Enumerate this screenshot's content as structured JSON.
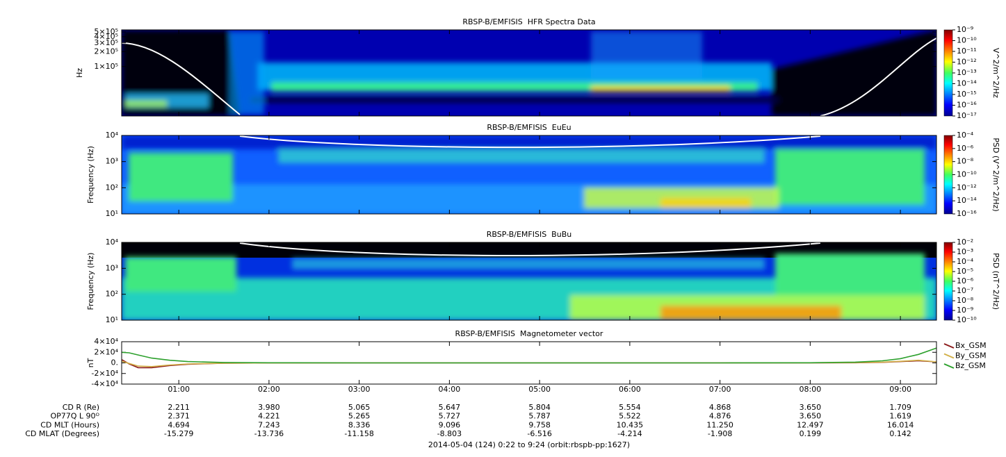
{
  "chart_data": [
    {
      "type": "spectrogram",
      "title": "RBSP-B/EMFISIS  HFR Spectra Data",
      "ylabel": "Hz",
      "ylog": true,
      "ylim": [
        10000,
        550000
      ],
      "yticks": [
        {
          "value": 100000,
          "label": "1×10⁵"
        },
        {
          "value": 200000,
          "label": "2×10⁵"
        },
        {
          "value": 300000,
          "label": "3×10⁵"
        },
        {
          "value": 400000,
          "label": "4×10⁵"
        },
        {
          "value": 500000,
          "label": "5×10⁵"
        }
      ],
      "zlabel": "V^2/m^2/Hz",
      "zlim": [
        1e-17,
        1e-09
      ],
      "zticks": [
        {
          "value": 1e-09,
          "label": "10⁻⁹"
        },
        {
          "value": 1e-10,
          "label": "10⁻¹⁰"
        },
        {
          "value": 1e-11,
          "label": "10⁻¹¹"
        },
        {
          "value": 1e-12,
          "label": "10⁻¹²"
        },
        {
          "value": 1e-13,
          "label": "10⁻¹³"
        },
        {
          "value": 1e-14,
          "label": "10⁻¹⁴"
        },
        {
          "value": 1e-15,
          "label": "10⁻¹⁵"
        },
        {
          "value": 1e-16,
          "label": "10⁻¹⁶"
        },
        {
          "value": 1e-17,
          "label": "10⁻¹⁷"
        }
      ]
    },
    {
      "type": "spectrogram",
      "title": "RBSP-B/EMFISIS  EuEu",
      "ylabel": "Frequency (Hz)",
      "ylog": true,
      "ylim": [
        10,
        10000
      ],
      "yticks": [
        {
          "value": 10,
          "label": "10¹"
        },
        {
          "value": 100,
          "label": "10²"
        },
        {
          "value": 1000,
          "label": "10³"
        },
        {
          "value": 10000,
          "label": "10⁴"
        }
      ],
      "zlabel": "PSD (V^2/m^2/Hz)",
      "zlim": [
        1e-16,
        0.0001
      ],
      "zticks": [
        {
          "value": 0.0001,
          "label": "10⁻⁴"
        },
        {
          "value": 1e-06,
          "label": "10⁻⁶"
        },
        {
          "value": 1e-08,
          "label": "10⁻⁸"
        },
        {
          "value": 1e-10,
          "label": "10⁻¹⁰"
        },
        {
          "value": 1e-12,
          "label": "10⁻¹²"
        },
        {
          "value": 1e-14,
          "label": "10⁻¹⁴"
        },
        {
          "value": 1e-16,
          "label": "10⁻¹⁶"
        }
      ]
    },
    {
      "type": "spectrogram",
      "title": "RBSP-B/EMFISIS  BuBu",
      "ylabel": "Frequency (Hz)",
      "ylog": true,
      "ylim": [
        10,
        10000
      ],
      "yticks": [
        {
          "value": 10,
          "label": "10¹"
        },
        {
          "value": 100,
          "label": "10²"
        },
        {
          "value": 1000,
          "label": "10³"
        },
        {
          "value": 10000,
          "label": "10⁴"
        }
      ],
      "zlabel": "PSD (nT^2/Hz)",
      "zlim": [
        1e-10,
        0.01
      ],
      "zticks": [
        {
          "value": 0.01,
          "label": "10⁻²"
        },
        {
          "value": 0.001,
          "label": "10⁻³"
        },
        {
          "value": 0.0001,
          "label": "10⁻⁴"
        },
        {
          "value": 1e-05,
          "label": "10⁻⁵"
        },
        {
          "value": 1e-06,
          "label": "10⁻⁶"
        },
        {
          "value": 1e-07,
          "label": "10⁻⁷"
        },
        {
          "value": 1e-08,
          "label": "10⁻⁸"
        },
        {
          "value": 1e-09,
          "label": "10⁻⁹"
        },
        {
          "value": 1e-10,
          "label": "10⁻¹⁰"
        }
      ]
    },
    {
      "type": "line",
      "title": "RBSP-B/EMFISIS  Magnetometer vector",
      "ylabel": "nT",
      "legend": "outside right",
      "ylim": [
        -40000,
        40000
      ],
      "yticks": [
        {
          "value": 40000,
          "label": "4×10⁴"
        },
        {
          "value": 20000,
          "label": "2×10⁴"
        },
        {
          "value": 0,
          "label": "0."
        },
        {
          "value": -20000,
          "label": "-2×10⁴"
        },
        {
          "value": -40000,
          "label": "-4×10⁴"
        }
      ],
      "xlim": [
        0.3667,
        9.4
      ],
      "xticks": [
        {
          "value": 1,
          "label": "01:00"
        },
        {
          "value": 2,
          "label": "02:00"
        },
        {
          "value": 3,
          "label": "03:00"
        },
        {
          "value": 4,
          "label": "04:00"
        },
        {
          "value": 5,
          "label": "05:00"
        },
        {
          "value": 6,
          "label": "06:00"
        },
        {
          "value": 7,
          "label": "07:00"
        },
        {
          "value": 8,
          "label": "08:00"
        },
        {
          "value": 9,
          "label": "09:00"
        }
      ],
      "x": [
        0.37,
        0.45,
        0.55,
        0.7,
        0.9,
        1.1,
        1.5,
        2,
        3,
        4,
        5,
        6,
        7,
        8,
        8.5,
        8.8,
        9.0,
        9.2,
        9.4
      ],
      "series": [
        {
          "name": "Bx_GSM",
          "color": "#8b1a1a",
          "values": [
            6000,
            -2000,
            -9000,
            -9000,
            -5000,
            -2500,
            -600,
            -100,
            0,
            0,
            0,
            0,
            0,
            0,
            300,
            1000,
            2500,
            4000,
            2000
          ]
        },
        {
          "name": "By_GSM",
          "color": "#d2b048",
          "values": [
            3000,
            -1000,
            -6000,
            -7000,
            -4000,
            -2000,
            -500,
            -100,
            0,
            0,
            0,
            0,
            0,
            100,
            500,
            1500,
            3000,
            5000,
            2000
          ]
        },
        {
          "name": "Bz_GSM",
          "color": "#2ca02c",
          "values": [
            20000,
            19000,
            15000,
            9000,
            5000,
            2500,
            800,
            200,
            0,
            0,
            0,
            0,
            0,
            300,
            1500,
            4000,
            8000,
            16000,
            28000
          ]
        }
      ]
    }
  ],
  "ephemeris": {
    "rows": [
      {
        "label": "CD R (Re)",
        "values": [
          "2.211",
          "3.980",
          "5.065",
          "5.647",
          "5.804",
          "5.554",
          "4.868",
          "3.650",
          "1.709"
        ]
      },
      {
        "label": "OP77Q L 90ᴼ",
        "values": [
          "2.371",
          "4.221",
          "5.265",
          "5.727",
          "5.787",
          "5.522",
          "4.876",
          "3.650",
          "1.619"
        ]
      },
      {
        "label": "CD MLT (Hours)",
        "values": [
          "4.694",
          "7.243",
          "8.336",
          "9.096",
          "9.758",
          "10.435",
          "11.250",
          "12.497",
          "16.014"
        ]
      },
      {
        "label": "CD MLAT (Degrees)",
        "values": [
          "-15.279",
          "-13.736",
          "-11.158",
          "-8.803",
          "-6.516",
          "-4.214",
          "-1.908",
          "0.199",
          "0.142"
        ]
      }
    ],
    "footer": "2014-05-04 (124) 0:22 to 9:24 (orbit:rbspb-pp:1627)"
  }
}
